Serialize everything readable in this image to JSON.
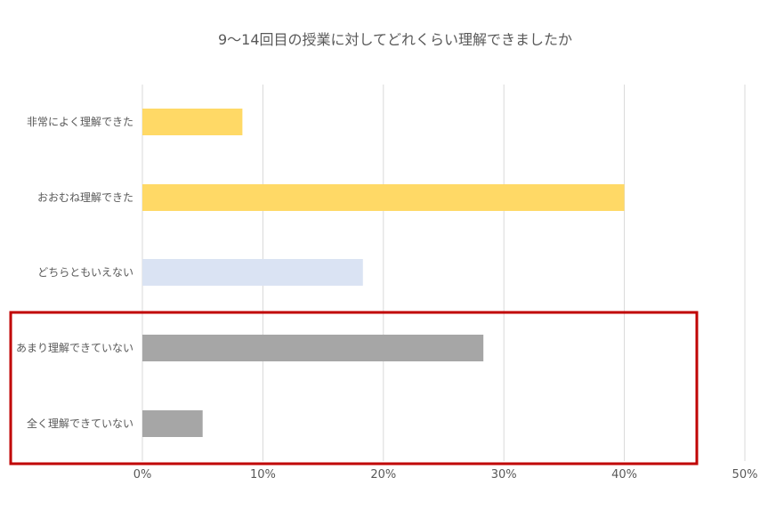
{
  "chart_data": {
    "type": "bar",
    "orientation": "horizontal",
    "title": "9〜14回目の授業に対してどれくらい理解できましたか",
    "categories": [
      "非常によく理解できた",
      "おおむね理解できた",
      "どちらともいえない",
      "あまり理解できていない",
      "全く理解できていない"
    ],
    "values": [
      8.3,
      40.0,
      18.3,
      28.3,
      5.0
    ],
    "value_unit": "%",
    "xlim": [
      0,
      50
    ],
    "x_ticks": [
      0,
      10,
      20,
      30,
      40,
      50
    ],
    "x_tick_labels": [
      "0%",
      "10%",
      "20%",
      "30%",
      "40%",
      "50%"
    ],
    "grid": true,
    "legend": "none",
    "bar_colors": [
      "#FFD966",
      "#FFD966",
      "#DAE3F3",
      "#A6A6A6",
      "#A6A6A6"
    ],
    "highlight": {
      "categories": [
        "あまり理解できていない",
        "全く理解できていない"
      ],
      "color": "#C00000"
    }
  }
}
